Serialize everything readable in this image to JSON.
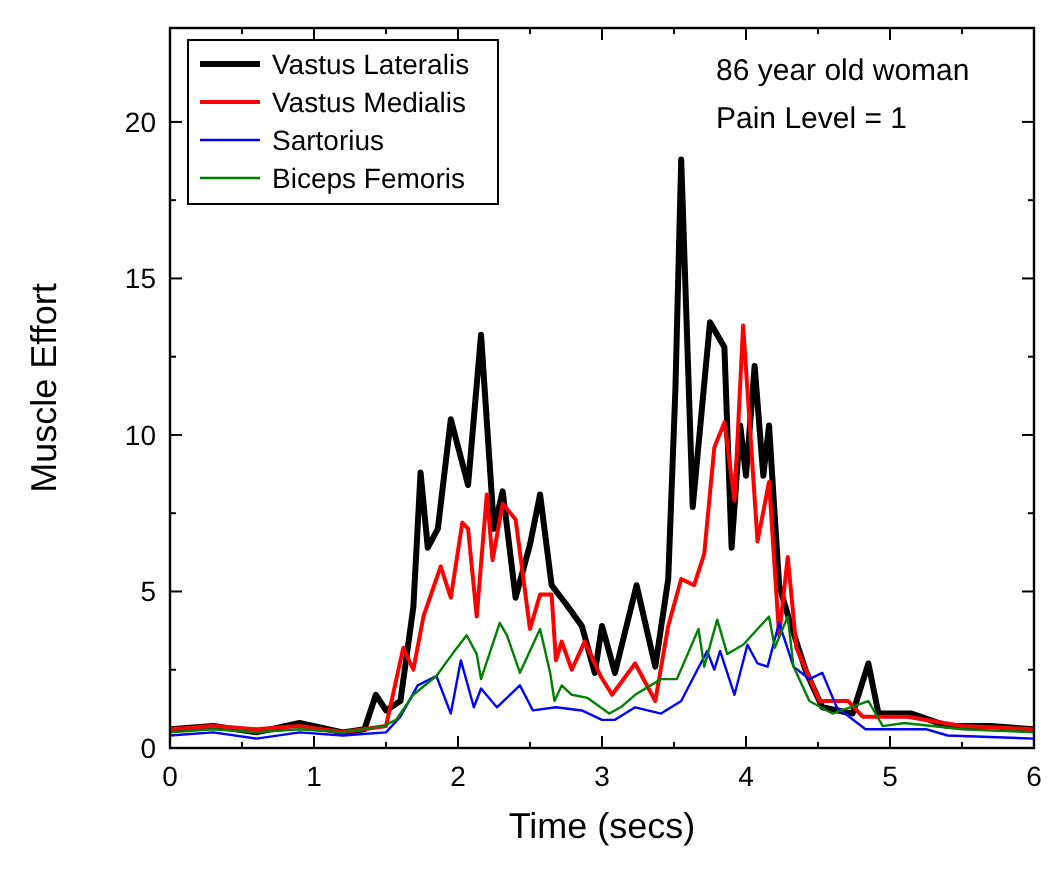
{
  "chart_data": {
    "type": "line",
    "xlabel": "Time (secs)",
    "ylabel": "Muscle Effort",
    "xlim": [
      0,
      6
    ],
    "ylim": [
      0,
      23
    ],
    "xticks": [
      0,
      1,
      2,
      3,
      4,
      5,
      6
    ],
    "yticks": [
      0,
      5,
      10,
      15,
      20
    ],
    "legend": "top left",
    "grid": false,
    "annotations": [
      "86 year old woman",
      "Pain Level = 1"
    ],
    "series": [
      {
        "name": "Vastus Lateralis",
        "color": "#000000",
        "x": [
          0,
          0.3,
          0.6,
          0.9,
          1.2,
          1.35,
          1.43,
          1.5,
          1.6,
          1.69,
          1.74,
          1.79,
          1.86,
          1.95,
          2.07,
          2.16,
          2.25,
          2.31,
          2.4,
          2.5,
          2.57,
          2.65,
          2.75,
          2.86,
          2.95,
          3.0,
          3.09,
          3.24,
          3.37,
          3.46,
          3.51,
          3.55,
          3.63,
          3.75,
          3.85,
          3.9,
          3.96,
          4.0,
          4.06,
          4.12,
          4.16,
          4.23,
          4.3,
          4.42,
          4.53,
          4.74,
          4.85,
          4.92,
          5.15,
          5.4,
          5.7,
          6
        ],
        "values": [
          0.6,
          0.7,
          0.5,
          0.8,
          0.5,
          0.6,
          1.7,
          1.2,
          1.5,
          4.5,
          8.8,
          6.4,
          7.0,
          10.5,
          8.4,
          13.2,
          7.0,
          8.2,
          4.8,
          6.5,
          8.1,
          5.2,
          4.6,
          3.9,
          2.4,
          3.9,
          2.4,
          5.2,
          2.6,
          5.4,
          11.5,
          18.8,
          7.7,
          13.6,
          12.8,
          6.4,
          10.3,
          8.7,
          12.2,
          8.7,
          10.3,
          5.2,
          4.1,
          2.4,
          1.3,
          1.1,
          2.7,
          1.1,
          1.1,
          0.7,
          0.7,
          0.6
        ]
      },
      {
        "name": "Vastus Medialis",
        "color": "#ff0000",
        "x": [
          0,
          0.3,
          0.6,
          0.9,
          1.2,
          1.5,
          1.62,
          1.69,
          1.76,
          1.88,
          1.95,
          2.03,
          2.07,
          2.13,
          2.2,
          2.24,
          2.31,
          2.4,
          2.5,
          2.57,
          2.65,
          2.68,
          2.72,
          2.79,
          2.88,
          2.99,
          3.07,
          3.23,
          3.37,
          3.46,
          3.55,
          3.64,
          3.71,
          3.78,
          3.85,
          3.92,
          3.98,
          4.08,
          4.16,
          4.23,
          4.29,
          4.35,
          4.51,
          4.71,
          4.81,
          5.12,
          5.5,
          6
        ],
        "values": [
          0.6,
          0.7,
          0.6,
          0.7,
          0.5,
          0.7,
          3.2,
          2.5,
          4.2,
          5.8,
          4.8,
          7.2,
          7.0,
          4.2,
          8.1,
          6.0,
          7.8,
          7.3,
          3.8,
          4.9,
          4.9,
          2.8,
          3.4,
          2.5,
          3.4,
          2.3,
          1.7,
          2.7,
          1.5,
          3.9,
          5.4,
          5.2,
          6.2,
          9.6,
          10.4,
          7.9,
          13.5,
          6.6,
          8.5,
          3.6,
          6.1,
          3.2,
          1.5,
          1.5,
          1.0,
          1.0,
          0.7,
          0.6
        ]
      },
      {
        "name": "Sartorius",
        "color": "#0000ff",
        "x": [
          0,
          0.3,
          0.6,
          0.9,
          1.2,
          1.5,
          1.6,
          1.72,
          1.85,
          1.95,
          2.02,
          2.11,
          2.16,
          2.27,
          2.43,
          2.52,
          2.68,
          2.86,
          3.0,
          3.09,
          3.23,
          3.41,
          3.55,
          3.73,
          3.78,
          3.82,
          3.92,
          4.01,
          4.08,
          4.15,
          4.23,
          4.33,
          4.44,
          4.53,
          4.63,
          4.83,
          5.25,
          5.4,
          6
        ],
        "values": [
          0.4,
          0.5,
          0.3,
          0.5,
          0.4,
          0.5,
          1.0,
          2.0,
          2.3,
          1.1,
          2.8,
          1.3,
          1.9,
          1.3,
          2.0,
          1.2,
          1.3,
          1.2,
          0.9,
          0.9,
          1.3,
          1.1,
          1.5,
          3.1,
          2.5,
          3.1,
          1.7,
          3.3,
          2.7,
          2.6,
          4.0,
          2.6,
          2.2,
          2.4,
          1.3,
          0.6,
          0.6,
          0.4,
          0.3
        ]
      },
      {
        "name": "Biceps Femoris",
        "color": "#008000",
        "x": [
          0,
          0.3,
          0.6,
          0.9,
          1.2,
          1.48,
          1.57,
          1.69,
          1.85,
          1.96,
          2.06,
          2.13,
          2.16,
          2.29,
          2.34,
          2.43,
          2.57,
          2.64,
          2.67,
          2.72,
          2.79,
          2.9,
          3.05,
          3.13,
          3.23,
          3.41,
          3.52,
          3.67,
          3.71,
          3.8,
          3.87,
          3.98,
          4.16,
          4.2,
          4.29,
          4.33,
          4.44,
          4.6,
          4.85,
          4.95,
          5.1,
          5.5,
          6
        ],
        "values": [
          0.5,
          0.6,
          0.5,
          0.6,
          0.5,
          0.7,
          0.9,
          1.7,
          2.3,
          3.0,
          3.6,
          3.0,
          2.2,
          4.0,
          3.6,
          2.4,
          3.8,
          2.4,
          1.5,
          2.0,
          1.7,
          1.6,
          1.1,
          1.3,
          1.7,
          2.2,
          2.2,
          3.8,
          2.6,
          4.1,
          3.0,
          3.3,
          4.2,
          3.2,
          4.2,
          2.6,
          1.5,
          1.1,
          1.5,
          0.7,
          0.8,
          0.6,
          0.5
        ]
      }
    ]
  }
}
